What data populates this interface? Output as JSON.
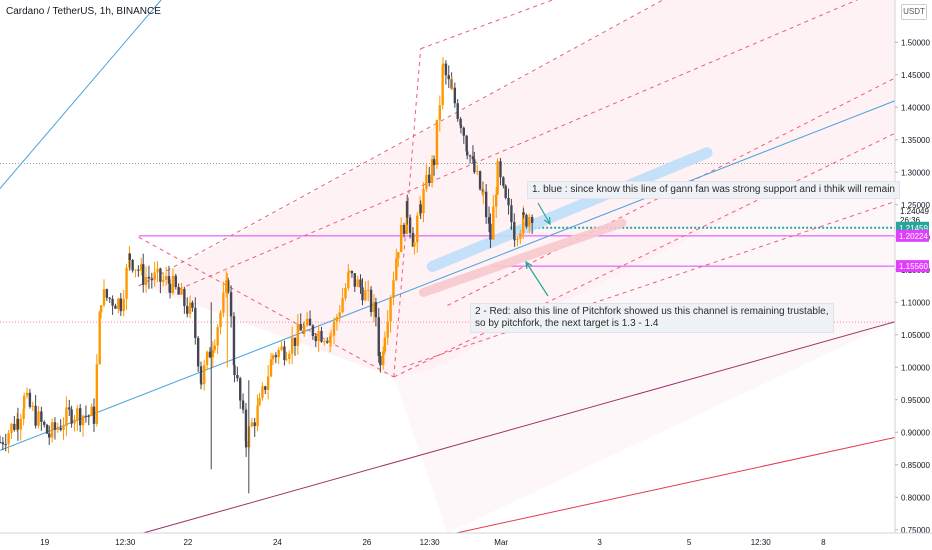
{
  "header": {
    "title": "Cardano / TetherUS, 1h, BINANCE",
    "currency": "USDT"
  },
  "colors": {
    "up": "#ff9800",
    "down": "#434651",
    "blue": "#4aa3df",
    "magenta": "#e040fb",
    "red_dash": "#ef5f74",
    "maroon": "#a0306a",
    "crimson": "#e53950",
    "teal": "#26a69a",
    "blue_hl": "#bfe0fb",
    "red_hl": "#f8c9cf"
  },
  "chart_data": {
    "type": "candlestick",
    "symbol": "Cardano / TetherUS",
    "interval": "1h",
    "exchange": "BINANCE",
    "ylim": [
      0.745,
      1.565
    ],
    "y_ticks": [
      "1.50000",
      "1.45000",
      "1.40000",
      "1.35000",
      "1.30000",
      "1.25000",
      "1.20000",
      "1.15000",
      "1.10000",
      "1.05000",
      "1.00000",
      "0.95000",
      "0.90000",
      "0.85000",
      "0.80000",
      "0.75000"
    ],
    "x_ticks": [
      "19",
      "12:30",
      "22",
      "24",
      "26",
      "12:30",
      "Mar",
      "3",
      "5",
      "12:30",
      "8"
    ],
    "x_tick_positions": [
      0.05,
      0.14,
      0.21,
      0.31,
      0.41,
      0.48,
      0.56,
      0.67,
      0.77,
      0.85,
      0.92
    ],
    "price_labels": [
      {
        "value": "1.24049",
        "kind": "plain",
        "price": 1.2405
      },
      {
        "value": "26:36",
        "kind": "plain",
        "price": 1.2265
      },
      {
        "value": "1.21459",
        "kind": "teal",
        "price": 1.2146
      },
      {
        "value": "1.20224",
        "kind": "magenta",
        "price": 1.2022
      },
      {
        "value": "1.15560",
        "kind": "magenta",
        "price": 1.1556
      }
    ],
    "horizontal_lines": [
      {
        "y": 1.3135,
        "style": "dotted",
        "color": "#9e9e9e"
      },
      {
        "y": 1.0695,
        "style": "dotted",
        "color": "#ff80ab"
      },
      {
        "y": 1.2146,
        "style": "dotted",
        "color": "#26a69a"
      },
      {
        "y": 1.2022,
        "style": "solid",
        "color": "#e040fb"
      },
      {
        "y": 1.1556,
        "style": "solid",
        "color": "#e040fb"
      }
    ],
    "candles_key_points": [
      [
        0.0,
        0.885
      ],
      [
        0.02,
        0.92
      ],
      [
        0.027,
        0.95
      ],
      [
        0.055,
        0.895
      ],
      [
        0.08,
        0.93
      ],
      [
        0.105,
        0.925
      ],
      [
        0.113,
        1.11
      ],
      [
        0.135,
        1.1
      ],
      [
        0.145,
        1.17
      ],
      [
        0.16,
        1.14
      ],
      [
        0.19,
        1.13
      ],
      [
        0.215,
        1.08
      ],
      [
        0.225,
        0.98
      ],
      [
        0.24,
        1.05
      ],
      [
        0.255,
        1.13
      ],
      [
        0.262,
        1.0
      ],
      [
        0.275,
        0.89
      ],
      [
        0.29,
        0.94
      ],
      [
        0.305,
        1.02
      ],
      [
        0.32,
        1.03
      ],
      [
        0.34,
        1.06
      ],
      [
        0.37,
        1.05
      ],
      [
        0.39,
        1.14
      ],
      [
        0.405,
        1.12
      ],
      [
        0.42,
        1.08
      ],
      [
        0.425,
        1.0
      ],
      [
        0.43,
        1.06
      ],
      [
        0.445,
        1.19
      ],
      [
        0.455,
        1.24
      ],
      [
        0.463,
        1.19
      ],
      [
        0.47,
        1.25
      ],
      [
        0.485,
        1.32
      ],
      [
        0.495,
        1.46
      ],
      [
        0.505,
        1.42
      ],
      [
        0.515,
        1.38
      ],
      [
        0.522,
        1.34
      ],
      [
        0.53,
        1.3
      ],
      [
        0.54,
        1.26
      ],
      [
        0.548,
        1.2
      ],
      [
        0.556,
        1.3
      ],
      [
        0.565,
        1.25
      ],
      [
        0.575,
        1.21
      ],
      [
        0.585,
        1.225
      ],
      [
        0.595,
        1.24
      ]
    ]
  },
  "annotations": {
    "blue_note": "1. blue : since know this line of gann fan was strong support and  i thhik will remain",
    "red_note_line1": "2 - Red: also this line of Pitchfork showed us this channel is remaining trustable,",
    "red_note_line2": "so by pitchfork, the next target is 1.3 - 1.4"
  }
}
